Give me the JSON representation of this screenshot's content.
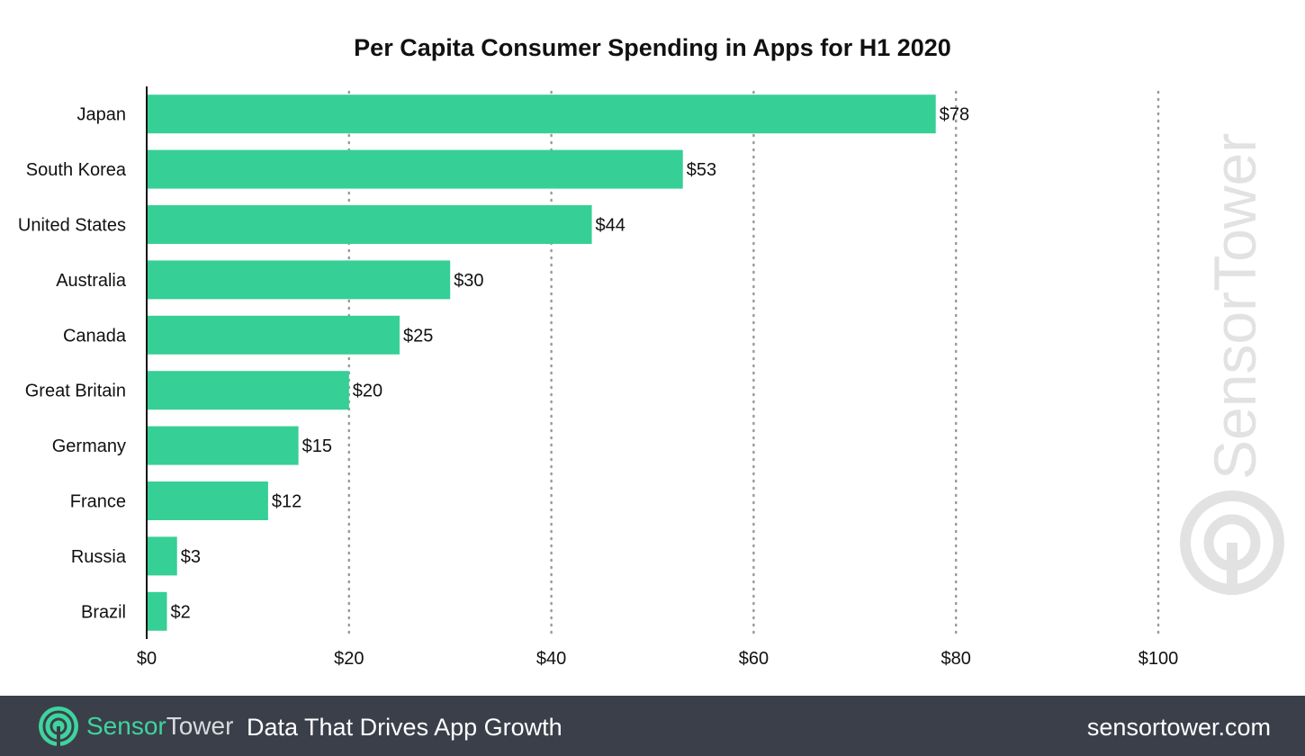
{
  "chart_data": {
    "type": "bar",
    "orientation": "horizontal",
    "title": "Per Capita Consumer Spending in Apps for H1 2020",
    "xlabel": "",
    "ylabel": "",
    "categories": [
      "Japan",
      "South Korea",
      "United States",
      "Australia",
      "Canada",
      "Great Britain",
      "Germany",
      "France",
      "Russia",
      "Brazil"
    ],
    "values": [
      78,
      53,
      44,
      30,
      25,
      20,
      15,
      12,
      3,
      2
    ],
    "value_labels": [
      "$78",
      "$53",
      "$44",
      "$30",
      "$25",
      "$20",
      "$15",
      "$12",
      "$3",
      "$2"
    ],
    "xlim": [
      0,
      100
    ],
    "x_ticks": [
      0,
      20,
      40,
      60,
      80,
      100
    ],
    "x_tick_labels": [
      "$0",
      "$20",
      "$40",
      "$60",
      "$80",
      "$100"
    ],
    "grid": "vertical dotted",
    "legend": "none",
    "bar_color": "#36cf96"
  },
  "watermark": {
    "text": "SensorTower"
  },
  "footer": {
    "brand_part1": "Sensor",
    "brand_part2": "Tower",
    "tagline": "Data That Drives App Growth",
    "url": "sensortower.com",
    "background_color": "#3b3f4a",
    "accent_color": "#3ed49d",
    "logo_icon": "sensortower-logo-icon"
  }
}
